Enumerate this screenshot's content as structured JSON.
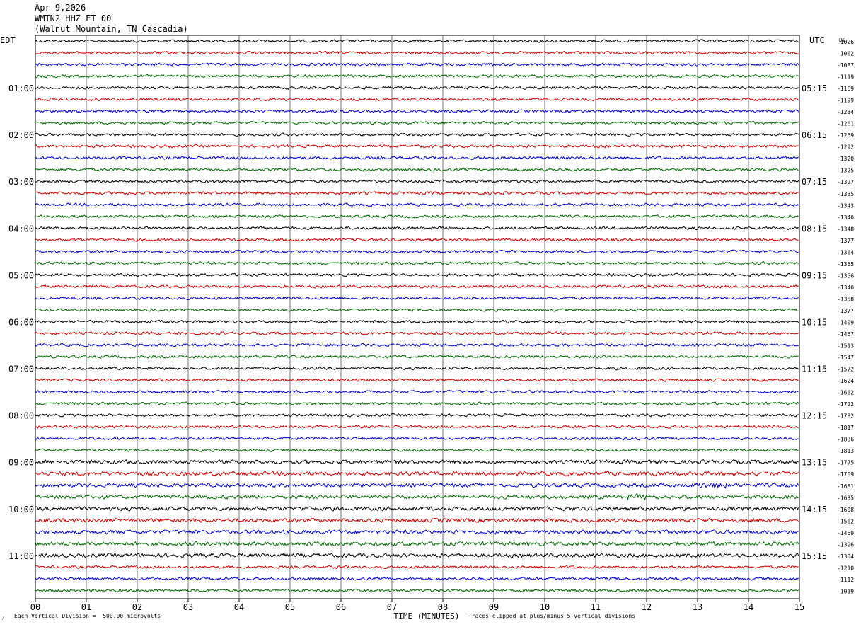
{
  "header": {
    "date": "Apr 9,2026",
    "station": "WMTN2 HHZ ET 00",
    "location": "(Walnut Mountain, TN Cascadia)"
  },
  "left_timezone": "EDT",
  "right_timezone": "UTC",
  "dc_label": "DC",
  "footer": {
    "scale_note": "Each Vertical Division =  500.00 microvolts",
    "clip_note": "Traces clipped at plus/minus 5 vertical divisions",
    "corner_mark": "⁄"
  },
  "colors": {
    "trace_cycle": [
      "#000000",
      "#cc0000",
      "#0000cc",
      "#006600"
    ],
    "grid": "#000000",
    "background": "#ffffff"
  },
  "chart_data": {
    "type": "line",
    "title": "",
    "xlabel": "TIME (MINUTES)",
    "ylabel": "",
    "x_ticks": [
      "00",
      "01",
      "02",
      "03",
      "04",
      "05",
      "06",
      "07",
      "08",
      "09",
      "10",
      "11",
      "12",
      "13",
      "14",
      "15"
    ],
    "xlim": [
      0,
      15
    ],
    "left_hour_labels": [
      "01:00",
      "02:00",
      "03:00",
      "04:00",
      "05:00",
      "06:00",
      "07:00",
      "08:00",
      "09:00",
      "10:00",
      "11:00"
    ],
    "right_hour_labels": [
      "05:15",
      "06:15",
      "07:15",
      "08:15",
      "09:15",
      "10:15",
      "11:15",
      "12:15",
      "13:15",
      "14:15",
      "15:15"
    ],
    "dc_offsets": [
      "-1026",
      "-1062",
      "-1087",
      "-1119",
      "-1169",
      "-1199",
      "-1234",
      "-1261",
      "-1269",
      "-1292",
      "-1320",
      "-1325",
      "-1327",
      "-1335",
      "-1343",
      "-1340",
      "-1348",
      "-1377",
      "-1364",
      "-1355",
      "-1356",
      "-1340",
      "-1358",
      "-1377",
      "-1409",
      "-1457",
      "-1513",
      "-1547",
      "-1572",
      "-1624",
      "-1662",
      "-1722",
      "-1782",
      "-1817",
      "-1836",
      "-1813",
      "-1775",
      "-1709",
      "-1681",
      "-1635",
      "-1608",
      "-1562",
      "-1469",
      "-1396",
      "-1304",
      "-1210",
      "-1112",
      "-1019"
    ],
    "series_count": 48,
    "minutes_per_line": 15,
    "grid": true
  }
}
